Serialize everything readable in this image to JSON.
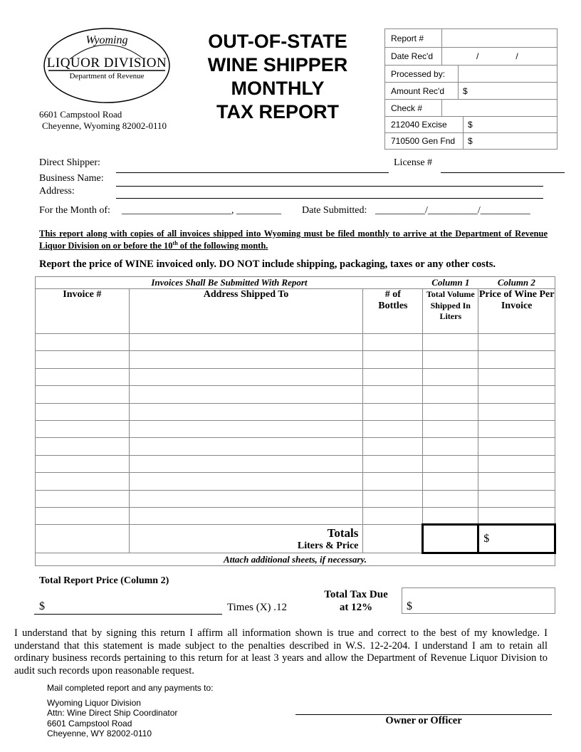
{
  "logo": {
    "script": "Wyoming",
    "name": "LIQUOR DIVISION",
    "dept": "Department of Revenue"
  },
  "address": {
    "line1": "6601 Campstool Road",
    "line2": "Cheyenne, Wyoming 82002-0110"
  },
  "title": {
    "line1": "OUT-OF-STATE",
    "line2": "WINE SHIPPER",
    "line3": "MONTHLY",
    "line4": "TAX REPORT"
  },
  "office_box": {
    "report_no": "Report #",
    "date_recd": "Date Rec'd",
    "date_slash": "/",
    "processed_by": "Processed by:",
    "amount_recd": "Amount Rec'd",
    "check_no": "Check #",
    "excise": "212040 Excise",
    "gen_fnd": "710500 Gen Fnd",
    "dollar": "$"
  },
  "fields": {
    "direct_shipper": "Direct Shipper:",
    "license": "License #",
    "business_name": "Business Name:",
    "address": "Address:",
    "month_of": "For the Month of:",
    "month_blank": "______________________, _________",
    "date_submitted": "Date Submitted:",
    "date_blank": "__________/__________/__________"
  },
  "notice": {
    "text1": "This report along with copies of all invoices shipped into Wyoming must be filed monthly to arrive at the Department of Revenue Liquor Division on or before the 10",
    "sup": "th",
    "text2": " of the following month."
  },
  "instruction": "Report the price of WINE invoiced only. DO NOT include shipping, packaging, taxes or any other costs.",
  "table": {
    "banner": "Invoices Shall Be Submitted With Report",
    "col1_label": "Column 1",
    "col2_label": "Column 2",
    "headers": [
      "Invoice #",
      "Address Shipped To",
      "# of Bottles",
      "Total Volume Shipped In Liters",
      "Price of Wine Per Invoice"
    ],
    "totals": "Totals",
    "totals_sub": "Liters & Price",
    "totals_dollar": "$",
    "attach": "Attach additional sheets, if necessary."
  },
  "summary": {
    "total_report_price": "Total Report Price (Column 2)",
    "dollar": "$",
    "times": "Times (X) .12",
    "tax_due_1": "Total Tax Due",
    "tax_due_2": "at 12%"
  },
  "declaration": "I understand that by signing this return I affirm all information shown is true and correct to the best of my knowledge.  I understand that this statement is made subject to the penalties described in W.S. 12-2-204.  I understand I am to retain all ordinary business records pertaining to this return for at least 3 years and allow the Department of Revenue Liquor Division to audit such records upon reasonable request.",
  "mail": {
    "intro": "Mail completed report and any payments to:",
    "lines": [
      "Wyoming Liquor Division",
      "Attn: Wine Direct Ship Coordinator",
      "6601 Campstool Road",
      "Cheyenne, WY  82002-0110"
    ]
  },
  "signature": "Owner or Officer"
}
